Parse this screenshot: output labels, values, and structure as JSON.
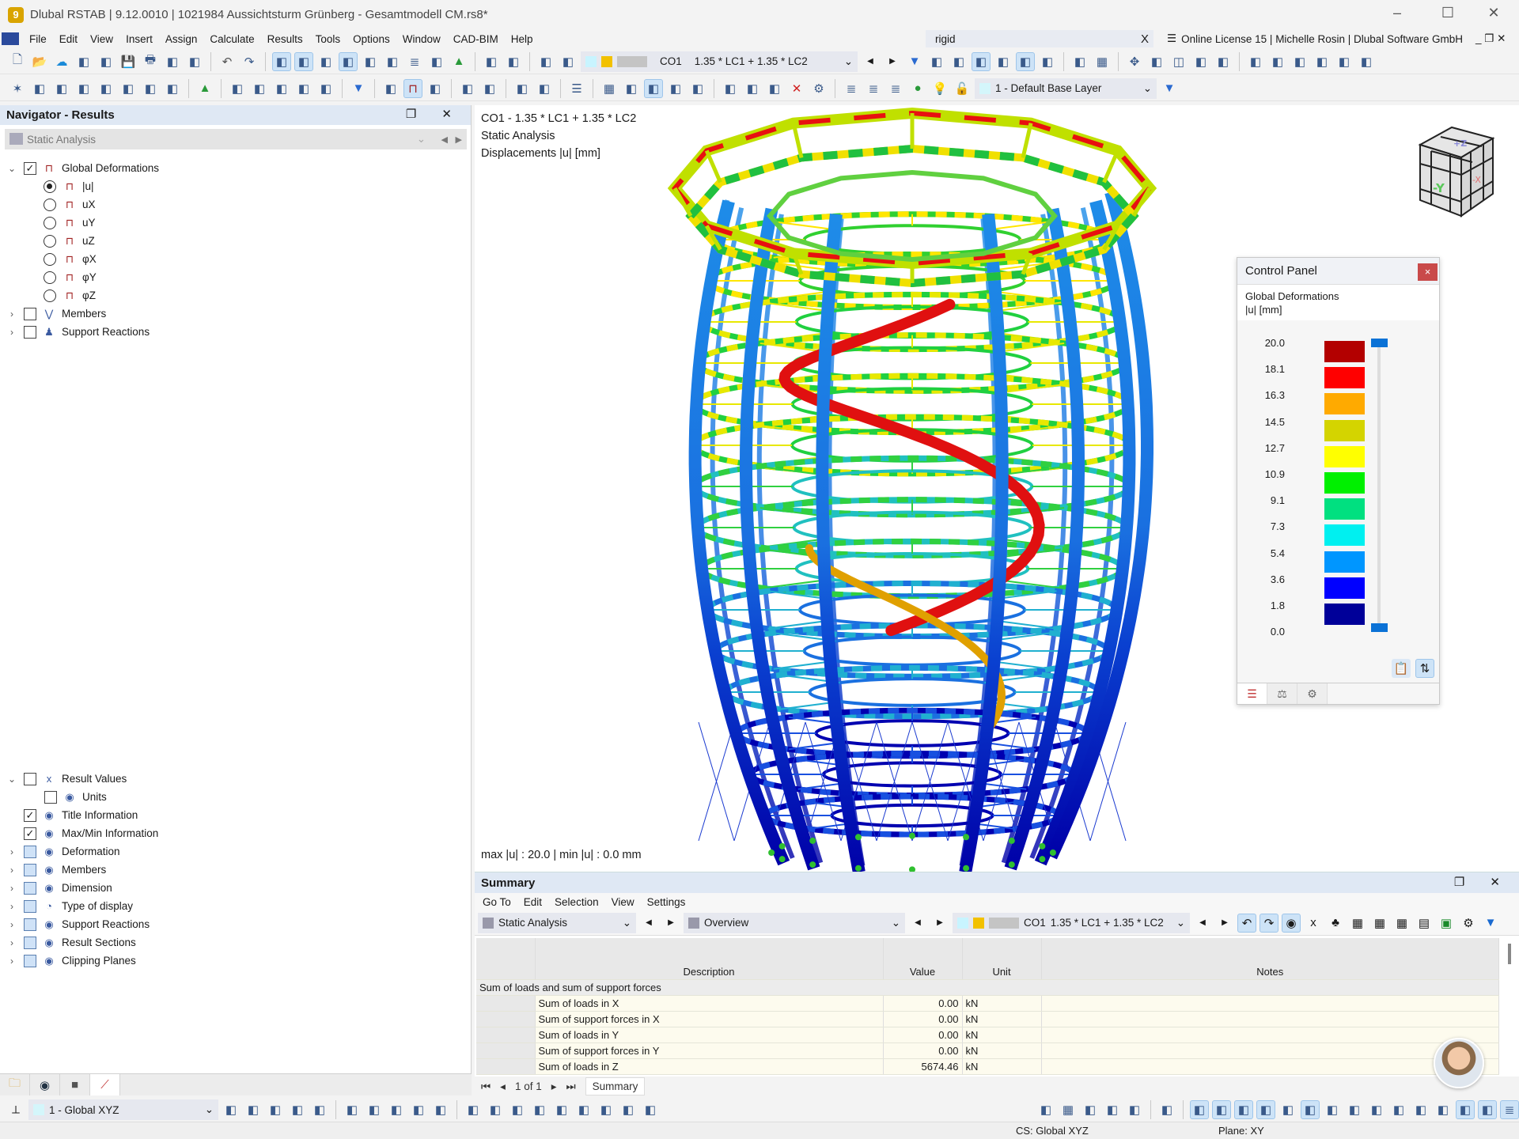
{
  "window": {
    "title": "Dlubal RSTAB | 9.12.0010 | 1021984 Aussichtsturm Grünberg - Gesamtmodell CM.rs8*",
    "minimize": "–",
    "maximize": "☐",
    "close": "✕"
  },
  "menu": [
    "File",
    "Edit",
    "View",
    "Insert",
    "Assign",
    "Calculate",
    "Results",
    "Tools",
    "Options",
    "Window",
    "CAD-BIM",
    "Help"
  ],
  "search": {
    "value": "rigid",
    "clear": "X"
  },
  "license": {
    "text": "Online License 15 | Michelle Rosin | Dlubal Software GmbH",
    "controls": "_ ❐ ✕"
  },
  "toolbar1": {
    "icons_left": [
      "new-icon",
      "open-icon",
      "cloud-icon",
      "webservice-icon",
      "print-report-icon",
      "save-icon",
      "print-icon",
      "new-report-icon",
      "report-icon",
      "|",
      "undo-icon",
      "redo-icon",
      "|",
      "navigator-icon",
      "tables-icon",
      "graph-icon",
      "panel-icon",
      "console-icon",
      "script-icon",
      "layers-icon",
      "list-icon",
      "support-icon",
      "|",
      "section-icon",
      "note-icon",
      "|",
      "select-icon",
      "select-add-icon"
    ],
    "co_colors": [
      "#c8f4ff",
      "#f2c100",
      "#c4c4c4"
    ],
    "combo_id": "CO1",
    "combo_text": "1.35 * LC1 + 1.35 * LC2",
    "icons_right": [
      "filter-icon",
      "result-icon",
      "values-icon",
      "results-on-icon",
      "values-on-icon",
      "results-2-icon",
      "values-2-icon",
      "|",
      "model-icon",
      "table-icon",
      "|",
      "move-icon",
      "zoom-x-icon",
      "box-icon",
      "box-edit-icon",
      "box-split-icon",
      "|",
      "axis-x-icon",
      "axis-y-icon",
      "axis-z-icon",
      "axis-minus-x-icon",
      "probe-icon",
      "more-icon"
    ]
  },
  "toolbar2": {
    "icons": [
      "node-icon",
      "member-icon",
      "member-2-icon",
      "member-set-icon",
      "member-set-2-icon",
      "line-icon",
      "line-2-icon",
      "surface-icon",
      "|",
      "support-icon",
      "|",
      "load-icon",
      "load-2-icon",
      "load-3-icon",
      "load-4-icon",
      "load-5-icon",
      "|",
      "filter-icon",
      "|",
      "diagram-icon",
      "deformation-icon",
      "animation-icon",
      "|",
      "result-diagram-icon",
      "reactions-icon",
      "|",
      "sections-icon",
      "sections-2-icon",
      "|",
      "color-scale-icon",
      "|",
      "grid-icon",
      "snap-icon",
      "plane-xy-icon",
      "plane-yz-icon",
      "plane-xz-icon",
      "|",
      "link-icon",
      "rotate-icon",
      "mirror-icon",
      "delete-icon",
      "settings-icon",
      "|",
      "layer-icon",
      "layer-lock-icon",
      "layer-add-icon"
    ],
    "layer": "1 - Default Base Layer"
  },
  "navigator": {
    "title": "Navigator - Results",
    "controls": "❐ ✕",
    "analysis": "Static Analysis",
    "tree_top": [
      {
        "label": "Global Deformations",
        "level": 0,
        "expand": "v",
        "check": "checked",
        "icon": "deformation-icon"
      },
      {
        "label": "|u|",
        "level": 1,
        "radio": true,
        "selected": true,
        "icon": "deformation-icon"
      },
      {
        "label": "uX",
        "level": 1,
        "radio": true,
        "icon": "deformation-icon"
      },
      {
        "label": "uY",
        "level": 1,
        "radio": true,
        "icon": "deformation-icon"
      },
      {
        "label": "uZ",
        "level": 1,
        "radio": true,
        "icon": "deformation-icon"
      },
      {
        "label": "φX",
        "level": 1,
        "radio": true,
        "icon": "deformation-icon"
      },
      {
        "label": "φY",
        "level": 1,
        "radio": true,
        "icon": "deformation-icon"
      },
      {
        "label": "φZ",
        "level": 1,
        "radio": true,
        "icon": "deformation-icon"
      },
      {
        "label": "Members",
        "level": 0,
        "expand": ">",
        "check": "empty",
        "icon": "member-diagram-icon"
      },
      {
        "label": "Support Reactions",
        "level": 0,
        "expand": ">",
        "check": "empty",
        "icon": "support-reactions-icon"
      }
    ],
    "tree_bottom": [
      {
        "label": "Result Values",
        "level": 0,
        "expand": "v",
        "check": "empty",
        "icon": "result-values-icon"
      },
      {
        "label": "Units",
        "level": 1,
        "check": "empty",
        "icon": "display-icon"
      },
      {
        "label": "Title Information",
        "level": 0,
        "check": "checked",
        "icon": "display-icon"
      },
      {
        "label": "Max/Min Information",
        "level": 0,
        "check": "checked",
        "icon": "display-icon"
      },
      {
        "label": "Deformation",
        "level": 0,
        "expand": ">",
        "check": "partial",
        "icon": "display-icon"
      },
      {
        "label": "Members",
        "level": 0,
        "expand": ">",
        "check": "partial",
        "icon": "display-icon"
      },
      {
        "label": "Dimension",
        "level": 0,
        "expand": ">",
        "check": "partial",
        "icon": "display-icon"
      },
      {
        "label": "Type of display",
        "level": 0,
        "expand": ">",
        "check": "partial",
        "icon": "rainbow-icon"
      },
      {
        "label": "Support Reactions",
        "level": 0,
        "expand": ">",
        "check": "partial",
        "icon": "display-icon"
      },
      {
        "label": "Result Sections",
        "level": 0,
        "expand": ">",
        "check": "partial",
        "icon": "display-icon"
      },
      {
        "label": "Clipping Planes",
        "level": 0,
        "expand": ">",
        "check": "partial",
        "icon": "display-icon"
      }
    ],
    "tabs": [
      "data-icon",
      "view-icon",
      "camera-icon",
      "results-icon"
    ]
  },
  "viewport": {
    "info": [
      "CO1 - 1.35 * LC1 + 1.35 * LC2",
      "Static Analysis",
      "Displacements |u| [mm]"
    ],
    "maxmin": "max |u| : 20.0 | min |u| : 0.0 mm",
    "cube": {
      "top": "+Z",
      "front": "-Y",
      "side": "-X"
    }
  },
  "control_panel": {
    "title": "Control Panel",
    "close": "×",
    "subtitle": "Global Deformations",
    "unit": "|u| [mm]",
    "legend_values": [
      "20.0",
      "18.1",
      "16.3",
      "14.5",
      "12.7",
      "10.9",
      "9.1",
      "7.3",
      "5.4",
      "3.6",
      "1.8",
      "0.0"
    ],
    "legend_colors": [
      "#b30000",
      "#ff0000",
      "#ffaa00",
      "#d4d400",
      "#ffff00",
      "#00f000",
      "#00e080",
      "#00f0f0",
      "#0096ff",
      "#0000ff",
      "#000099"
    ],
    "slider_range": [
      0.0,
      20.0
    ],
    "tabs": [
      "color-scale-icon",
      "balance-icon",
      "settings-icon"
    ]
  },
  "summary": {
    "title": "Summary",
    "controls": "❐ ✕",
    "menu": [
      "Go To",
      "Edit",
      "Selection",
      "View",
      "Settings"
    ],
    "analysis": "Static Analysis",
    "view": "Overview",
    "co": "CO1",
    "co_text": "1.35 * LC1 + 1.35 * LC2",
    "columns": [
      "Description",
      "Value",
      "Unit",
      "Notes"
    ],
    "group": "Sum of loads and sum of support forces",
    "rows": [
      {
        "desc": "Sum of loads in X",
        "value": "0.00",
        "unit": "kN"
      },
      {
        "desc": "Sum of support forces in X",
        "value": "0.00",
        "unit": "kN"
      },
      {
        "desc": "Sum of loads in Y",
        "value": "0.00",
        "unit": "kN"
      },
      {
        "desc": "Sum of support forces in Y",
        "value": "0.00",
        "unit": "kN"
      },
      {
        "desc": "Sum of loads in Z",
        "value": "5674.46",
        "unit": "kN"
      }
    ],
    "page": "1 of 1",
    "tab": "Summary"
  },
  "bottom": {
    "cs": "1 - Global XYZ"
  },
  "status": {
    "cs": "CS: Global XYZ",
    "plane": "Plane: XY"
  }
}
